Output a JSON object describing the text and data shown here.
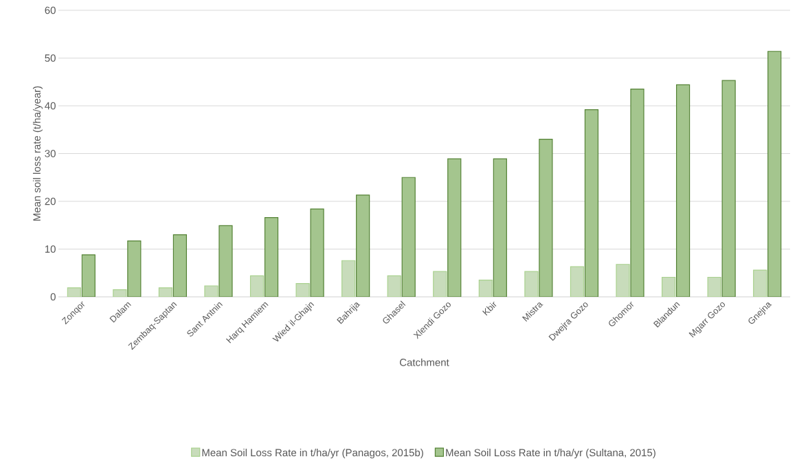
{
  "chart_data": {
    "type": "bar",
    "xlabel": "Catchment",
    "ylabel": "Mean soil loss rate (t/ha/year)",
    "categories": [
      "Zonqor",
      "Dalam",
      "Zembaq-Saptan",
      "Sant Antnin",
      "Harq Hamiem",
      "Wied il-Ghajn",
      "Bahrija",
      "Ghasel",
      "Xlendi Gozo",
      "Kbir",
      "Mistra",
      "Dwejra Gozo",
      "Ghomor",
      "Blandun",
      "Mgarr Gozo",
      "Gnejna"
    ],
    "series": [
      {
        "name": "Mean Soil Loss Rate in t/ha/yr (Panagos, 2015b)",
        "color": "#c8dcbb",
        "values": [
          1.9,
          1.5,
          1.9,
          2.3,
          4.4,
          2.8,
          7.6,
          4.4,
          5.3,
          3.5,
          5.3,
          6.3,
          6.8,
          4.1,
          4.1,
          5.6
        ]
      },
      {
        "name": "Mean Soil Loss Rate in t/ha/yr (Sultana, 2015)",
        "color": "#a4c58e",
        "values": [
          8.8,
          11.7,
          13.0,
          14.9,
          16.6,
          18.4,
          21.3,
          25.0,
          28.9,
          28.9,
          33.0,
          39.2,
          43.5,
          44.4,
          45.3,
          51.4
        ]
      }
    ],
    "ylim": [
      0,
      60
    ],
    "yticks": [
      0,
      10,
      20,
      30,
      40,
      50,
      60
    ],
    "grid": "y",
    "legend": "bottom"
  }
}
